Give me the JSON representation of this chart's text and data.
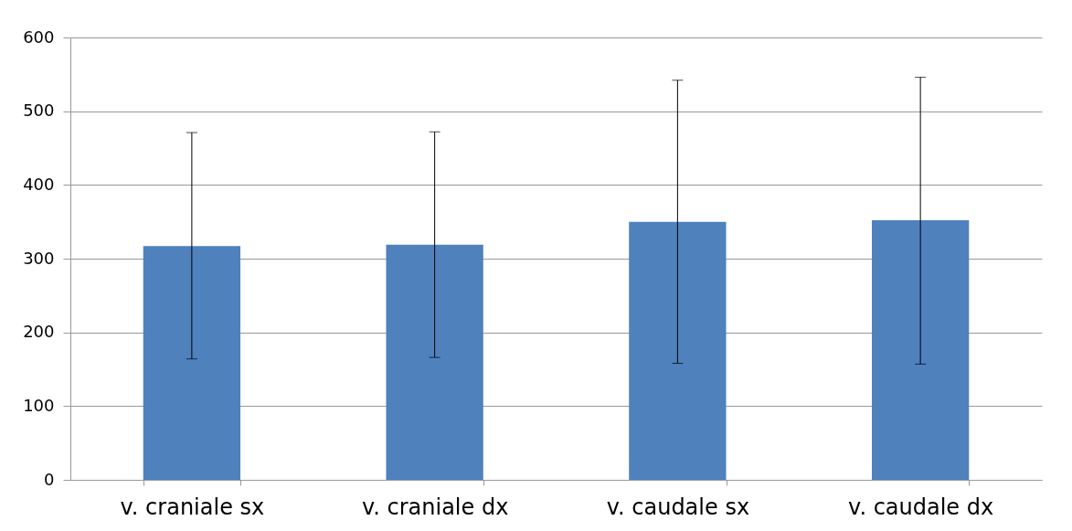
{
  "chart_data": {
    "type": "bar",
    "categories": [
      "v. craniale sx",
      "v. craniale dx",
      "v. caudale sx",
      "v. caudale dx"
    ],
    "values": [
      317,
      319,
      350,
      352
    ],
    "color": "#4f81bd",
    "errors": [
      [
        164,
        471
      ],
      [
        166,
        472
      ],
      [
        158,
        542
      ],
      [
        157,
        546
      ]
    ],
    "ylim": [
      0,
      600
    ],
    "yticks": [
      0,
      100,
      200,
      300,
      400,
      500,
      600
    ],
    "grid": "y"
  }
}
